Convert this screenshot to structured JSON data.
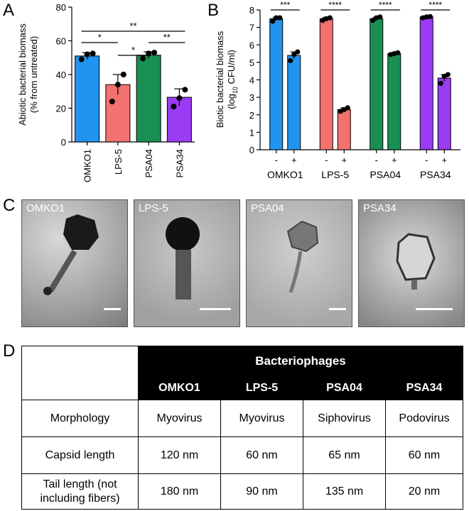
{
  "panel_labels": {
    "a": "A",
    "b": "B",
    "c": "C",
    "d": "D"
  },
  "chart_data": [
    {
      "type": "bar",
      "panel": "A",
      "categories": [
        "OMKO1",
        "LPS-5",
        "PSA04",
        "PSA34"
      ],
      "values": [
        51,
        34,
        51.5,
        26.5
      ],
      "errors": [
        2,
        6,
        2,
        5
      ],
      "points": [
        [
          49,
          52,
          52.5
        ],
        [
          24,
          34,
          40
        ],
        [
          49.5,
          52.5,
          53
        ],
        [
          21,
          26,
          31
        ]
      ],
      "colors": [
        "#2193f0",
        "#f3716e",
        "#1a8f54",
        "#9a3cf3"
      ],
      "ylabel_line1": "Abiotic bacterial biomass",
      "ylabel_line2": "(% from untreated)",
      "ylim": [
        0,
        80
      ],
      "yticks": [
        "0",
        "20",
        "40",
        "60",
        "80"
      ],
      "significance": [
        {
          "from": 0,
          "to": 3,
          "label": "**"
        },
        {
          "from": 0,
          "to": 1,
          "label": "*"
        },
        {
          "from": 2,
          "to": 3,
          "label": "**"
        },
        {
          "from": 1,
          "to": 2,
          "label": "*"
        }
      ]
    },
    {
      "type": "bar",
      "panel": "B",
      "categories": [
        "OMKO1",
        "LPS-5",
        "PSA04",
        "PSA34"
      ],
      "sub_labels": [
        "-",
        "+"
      ],
      "colors": [
        "#2193f0",
        "#f3716e",
        "#1a8f54",
        "#9a3cf3"
      ],
      "series": [
        {
          "values": [
            7.5,
            7.5,
            7.5,
            7.6
          ],
          "errors": [
            0.08,
            0.08,
            0.08,
            0.05
          ],
          "points": [
            [
              7.35,
              7.55,
              7.55
            ],
            [
              7.4,
              7.5,
              7.55
            ],
            [
              7.4,
              7.55,
              7.6
            ],
            [
              7.55,
              7.6,
              7.62
            ]
          ]
        },
        {
          "values": [
            5.4,
            2.3,
            5.5,
            4.1
          ],
          "errors": [
            0.2,
            0.1,
            0.05,
            0.2
          ],
          "points": [
            [
              5.1,
              5.45,
              5.6
            ],
            [
              2.2,
              2.3,
              2.4
            ],
            [
              5.45,
              5.5,
              5.55
            ],
            [
              3.8,
              4.2,
              4.3
            ]
          ]
        }
      ],
      "ylabel_line1": "Biotic bacterial biomass",
      "ylabel_line2_pre": "(log",
      "ylabel_line2_sub": "10",
      "ylabel_line2_post": " CFU/ml)",
      "ylim": [
        0,
        8
      ],
      "yticks": [
        "0",
        "1",
        "2",
        "3",
        "4",
        "5",
        "6",
        "7",
        "8"
      ],
      "significance": [
        "***",
        "****",
        "****",
        "****"
      ]
    }
  ],
  "micrographs": [
    "OMKO1",
    "LPS-5",
    "PSA04",
    "PSA34"
  ],
  "table": {
    "group_header": "Bacteriophages",
    "columns": [
      "OMKO1",
      "LPS-5",
      "PSA04",
      "PSA34"
    ],
    "rows": [
      {
        "label": "Morphology",
        "values": [
          "Myovirus",
          "Myovirus",
          "Siphovirus",
          "Podovirus"
        ]
      },
      {
        "label": "Capsid length",
        "values": [
          "120 nm",
          "60 nm",
          "65 nm",
          "60 nm"
        ]
      },
      {
        "label_line1": "Tail length (not",
        "label_line2": "including fibers)",
        "values": [
          "180 nm",
          "90 nm",
          "135 nm",
          "20 nm"
        ]
      }
    ]
  }
}
